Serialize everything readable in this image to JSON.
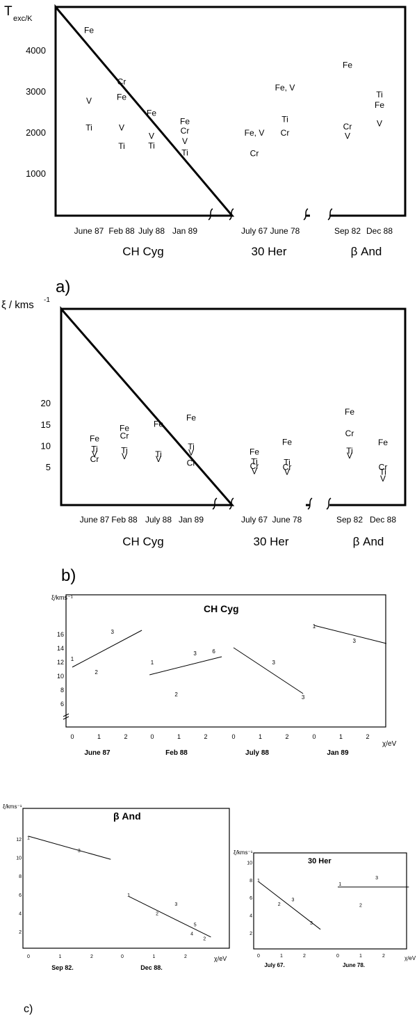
{
  "panel_a": {
    "panel_label": "a)",
    "ylabel": "T",
    "ylabel_sub": "exc/K",
    "y_ticks": [
      "1000",
      "2000",
      "3000",
      "4000"
    ],
    "dates": [
      "June 87",
      "Feb 88",
      "July 88",
      "Jan 89",
      "July 67",
      "June 78",
      "Sep 82",
      "Dec 88"
    ],
    "groups": [
      "CH Cyg",
      "30 Her",
      "β And"
    ]
  },
  "panel_b": {
    "panel_label": "b)",
    "ylabel": "ξ / kms",
    "ylabel_sup": "-1",
    "y_ticks": [
      "5",
      "10",
      "15",
      "20"
    ],
    "dates": [
      "June 87",
      "Feb 88",
      "July 88",
      "Jan 89",
      "July 67",
      "June 78",
      "Sep 82",
      "Dec 88"
    ],
    "groups": [
      "CH Cyg",
      "30 Her",
      "β And"
    ]
  },
  "panel_c": {
    "panel_label": "c)",
    "ch": {
      "title": "CH Cyg",
      "ylabel": "ξ/kms⁻¹",
      "y_ticks": [
        "6",
        "8",
        "10",
        "12",
        "14",
        "16"
      ],
      "x_ticks": [
        "0",
        "1",
        "2",
        "0",
        "1",
        "2",
        "0",
        "1",
        "2",
        "0",
        "1",
        "2"
      ],
      "dates": [
        "June 87",
        "Feb 88",
        "July 88",
        "Jan 89"
      ],
      "xlabel": "χ/eV"
    },
    "beta": {
      "title": "β And",
      "ylabel": "ξ/kms⁻¹",
      "y_ticks": [
        "2",
        "4",
        "6",
        "8",
        "10",
        "12"
      ],
      "x_ticks": [
        "0",
        "1",
        "2",
        "0",
        "1",
        "2"
      ],
      "dates": [
        "Sep 82.",
        "Dec 88."
      ],
      "xlabel": "χ/eV"
    },
    "her": {
      "title": "30 Her",
      "ylabel": "ξ/kms⁻¹",
      "y_ticks": [
        "2",
        "4",
        "6",
        "8",
        "10"
      ],
      "x_ticks": [
        "0",
        "1",
        "2",
        "0",
        "1",
        "2"
      ],
      "dates": [
        "July 67.",
        "June 78."
      ],
      "xlabel": "χ/eV"
    }
  },
  "chart_data": [
    {
      "type": "scatter",
      "panel": "a",
      "ylabel": "T exc/K",
      "ylim": [
        0,
        4500
      ],
      "categories": [
        "June 87",
        "Feb 88",
        "July 88",
        "Jan 89",
        "July 67",
        "June 78",
        "Sep 82",
        "Dec 88"
      ],
      "points": [
        {
          "category": "June 87",
          "label": "Fe",
          "y": 4500
        },
        {
          "category": "June 87",
          "label": "V",
          "y": 2780
        },
        {
          "category": "June 87",
          "label": "Ti",
          "y": 2130
        },
        {
          "category": "Feb 88",
          "label": "Cr",
          "y": 3250
        },
        {
          "category": "Feb 88",
          "label": "Fe",
          "y": 2870
        },
        {
          "category": "Feb 88",
          "label": "V",
          "y": 2130
        },
        {
          "category": "Feb 88",
          "label": "Ti",
          "y": 1680
        },
        {
          "category": "July 88",
          "label": "Fe",
          "y": 2480
        },
        {
          "category": "July 88",
          "label": "V",
          "y": 1920
        },
        {
          "category": "July 88",
          "label": "Ti",
          "y": 1690
        },
        {
          "category": "Jan 89",
          "label": "Fe",
          "y": 2280
        },
        {
          "category": "Jan 89",
          "label": "Cr",
          "y": 2050
        },
        {
          "category": "Jan 89",
          "label": "V",
          "y": 1800
        },
        {
          "category": "Jan 89",
          "label": "Ti",
          "y": 1520
        },
        {
          "category": "July 67",
          "label": "Fe, V",
          "y": 2000
        },
        {
          "category": "July 67",
          "label": "Cr",
          "y": 1500
        },
        {
          "category": "June 78",
          "label": "Fe, V",
          "y": 3100
        },
        {
          "category": "June 78",
          "label": "Ti",
          "y": 2330
        },
        {
          "category": "June 78",
          "label": "Cr",
          "y": 2000
        },
        {
          "category": "Sep 82",
          "label": "Fe",
          "y": 3650
        },
        {
          "category": "Sep 82",
          "label": "Cr",
          "y": 2150
        },
        {
          "category": "Sep 82",
          "label": "V",
          "y": 1920
        },
        {
          "category": "Dec 88",
          "label": "Ti",
          "y": 2930
        },
        {
          "category": "Dec 88",
          "label": "Fe",
          "y": 2680
        },
        {
          "category": "Dec 88",
          "label": "V",
          "y": 2230
        }
      ]
    },
    {
      "type": "scatter",
      "panel": "b",
      "ylabel": "ξ / kms-1",
      "ylim": [
        0,
        22
      ],
      "categories": [
        "June 87",
        "Feb 88",
        "July 88",
        "Jan 89",
        "July 67",
        "June 78",
        "Sep 82",
        "Dec 88"
      ],
      "points": [
        {
          "category": "June 87",
          "label": "Fe",
          "y": 11.8
        },
        {
          "category": "June 87",
          "label": "Ti",
          "y": 9.3
        },
        {
          "category": "June 87",
          "label": "V",
          "y": 8.2
        },
        {
          "category": "June 87",
          "label": "Cr",
          "y": 7.0
        },
        {
          "category": "Feb 88",
          "label": "Fe",
          "y": 14.2
        },
        {
          "category": "Feb 88",
          "label": "Cr",
          "y": 12.4
        },
        {
          "category": "Feb 88",
          "label": "Ti",
          "y": 9.0
        },
        {
          "category": "Feb 88",
          "label": "V",
          "y": 7.6
        },
        {
          "category": "July 88",
          "label": "Fe",
          "y": 15.2
        },
        {
          "category": "July 88",
          "label": "Ti",
          "y": 8.1
        },
        {
          "category": "July 88",
          "label": "V",
          "y": 7.0
        },
        {
          "category": "Jan 89",
          "label": "Fe",
          "y": 16.7
        },
        {
          "category": "Jan 89",
          "label": "Ti",
          "y": 9.9
        },
        {
          "category": "Jan 89",
          "label": "V",
          "y": 8.5
        },
        {
          "category": "Jan 89",
          "label": "Cr",
          "y": 6.1
        },
        {
          "category": "July 67",
          "label": "Fe",
          "y": 8.7
        },
        {
          "category": "July 67",
          "label": "Ti",
          "y": 6.4
        },
        {
          "category": "July 67",
          "label": "Cr",
          "y": 5.3
        },
        {
          "category": "July 67",
          "label": "V",
          "y": 4.1
        },
        {
          "category": "June 78",
          "label": "Fe",
          "y": 11.0
        },
        {
          "category": "June 78",
          "label": "Ti",
          "y": 6.2
        },
        {
          "category": "June 78",
          "label": "Cr",
          "y": 5.1
        },
        {
          "category": "June 78",
          "label": "V",
          "y": 3.9
        },
        {
          "category": "Sep 82",
          "label": "Fe",
          "y": 18.1
        },
        {
          "category": "Sep 82",
          "label": "Cr",
          "y": 13.0
        },
        {
          "category": "Sep 82",
          "label": "Ti",
          "y": 8.9
        },
        {
          "category": "Sep 82",
          "label": "V",
          "y": 7.8
        },
        {
          "category": "Dec 88",
          "label": "Fe",
          "y": 10.9
        },
        {
          "category": "Dec 88",
          "label": "Cr",
          "y": 5.1
        },
        {
          "category": "Dec 88",
          "label": "Ti",
          "y": 3.9
        },
        {
          "category": "Dec 88",
          "label": "V",
          "y": 2.4
        }
      ]
    },
    {
      "type": "line",
      "panel": "c-CH Cyg",
      "title": "CH Cyg",
      "xlabel": "χ/eV",
      "ylabel": "ξ/kms-1",
      "ylim": [
        4.5,
        18
      ],
      "subpanels": [
        {
          "name": "June 87",
          "points": [
            {
              "label": "1",
              "x": 0.0,
              "y": 12.5
            },
            {
              "label": "2",
              "x": 0.9,
              "y": 10.6
            },
            {
              "label": "3",
              "x": 1.5,
              "y": 16.4
            }
          ],
          "fit": [
            [
              0.0,
              11.3
            ],
            [
              2.6,
              16.6
            ]
          ]
        },
        {
          "name": "Feb 88",
          "points": [
            {
              "label": "1",
              "x": 0.0,
              "y": 12.0
            },
            {
              "label": "2",
              "x": 0.9,
              "y": 7.4
            },
            {
              "label": "3",
              "x": 1.6,
              "y": 13.3
            },
            {
              "label": "6",
              "x": 2.3,
              "y": 13.6
            }
          ],
          "fit": [
            [
              -0.1,
              10.2
            ],
            [
              2.6,
              12.8
            ]
          ]
        },
        {
          "name": "July 88",
          "points": [
            {
              "label": "3",
              "x": 1.5,
              "y": 12.0
            },
            {
              "label": "3",
              "x": 2.6,
              "y": 7.0
            }
          ],
          "fit": [
            [
              0.0,
              14.1
            ],
            [
              2.6,
              7.5
            ]
          ]
        },
        {
          "name": "Jan 89",
          "points": [
            {
              "label": "1",
              "x": 0.0,
              "y": 17.2
            },
            {
              "label": "3",
              "x": 1.5,
              "y": 15.1
            }
          ],
          "fit": [
            [
              0.0,
              17.3
            ],
            [
              2.7,
              14.7
            ]
          ]
        }
      ]
    },
    {
      "type": "line",
      "panel": "c-β And",
      "title": "β And",
      "xlabel": "χ/eV",
      "ylabel": "ξ/kms-1",
      "ylim": [
        0,
        13
      ],
      "subpanels": [
        {
          "name": "Sep 82.",
          "points": [
            {
              "label": "1",
              "x": 0.0,
              "y": 12.2
            },
            {
              "label": "3",
              "x": 1.6,
              "y": 10.8
            }
          ],
          "fit": [
            [
              0.0,
              12.3
            ],
            [
              2.6,
              9.8
            ]
          ]
        },
        {
          "name": "Dec 88.",
          "points": [
            {
              "label": "1",
              "x": 0.2,
              "y": 6.0
            },
            {
              "label": "2",
              "x": 1.1,
              "y": 4.0
            },
            {
              "label": "3",
              "x": 1.7,
              "y": 5.0
            },
            {
              "label": "5",
              "x": 2.3,
              "y": 2.8
            },
            {
              "label": "4",
              "x": 2.2,
              "y": 1.8
            },
            {
              "label": "2",
              "x": 2.6,
              "y": 1.3
            }
          ],
          "fit": [
            [
              0.2,
              5.8
            ],
            [
              2.8,
              1.4
            ]
          ]
        }
      ]
    },
    {
      "type": "line",
      "panel": "c-30 Her",
      "title": "30 Her",
      "xlabel": "χ/eV",
      "ylabel": "ξ/kms-1",
      "ylim": [
        0,
        11
      ],
      "subpanels": [
        {
          "name": "July 67.",
          "points": [
            {
              "label": "1",
              "x": 0.0,
              "y": 8.0
            },
            {
              "label": "2",
              "x": 0.9,
              "y": 5.3
            },
            {
              "label": "3",
              "x": 1.5,
              "y": 5.8
            },
            {
              "label": "3",
              "x": 2.3,
              "y": 3.2
            }
          ],
          "fit": [
            [
              0.0,
              7.8
            ],
            [
              2.7,
              2.4
            ]
          ]
        },
        {
          "name": "June 78.",
          "points": [
            {
              "label": "1",
              "x": 0.1,
              "y": 7.6
            },
            {
              "label": "2",
              "x": 1.0,
              "y": 5.2
            },
            {
              "label": "3",
              "x": 1.7,
              "y": 8.3
            }
          ],
          "fit": [
            [
              0.0,
              7.2
            ],
            [
              3.1,
              7.2
            ]
          ]
        }
      ]
    }
  ]
}
